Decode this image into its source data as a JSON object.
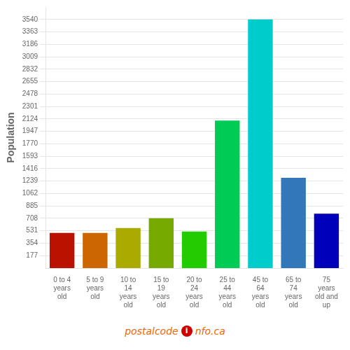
{
  "chart_data": {
    "type": "bar",
    "categories": [
      "0 to 4\nyears\nold",
      "5 to 9\nyears\nold",
      "10 to\n14\nyears\nold",
      "15 to\n19\nyears\nold",
      "20 to\n24\nyears\nold",
      "25 to\n44\nyears\nold",
      "45 to\n64\nyears\nold",
      "65 to\n74\nyears\nold",
      "75\nyears\nold and\nup"
    ],
    "values": [
      500,
      500,
      570,
      710,
      520,
      2100,
      3540,
      1285,
      775
    ],
    "colors": [
      "#bb1100",
      "#cc6600",
      "#aaaa00",
      "#77aa00",
      "#22cc00",
      "#00cc55",
      "#00cccc",
      "#3377bb",
      "#0000bb"
    ],
    "ylabel": "Population",
    "ylim": [
      0,
      3717
    ],
    "yticks": [
      177,
      354,
      531,
      708,
      885,
      1062,
      1239,
      1416,
      1593,
      1770,
      1947,
      2124,
      2301,
      2478,
      2655,
      2832,
      3009,
      3186,
      3363,
      3540
    ],
    "grid": true,
    "annotations": [
      "postalcode",
      "i",
      "nfo.ca"
    ]
  }
}
